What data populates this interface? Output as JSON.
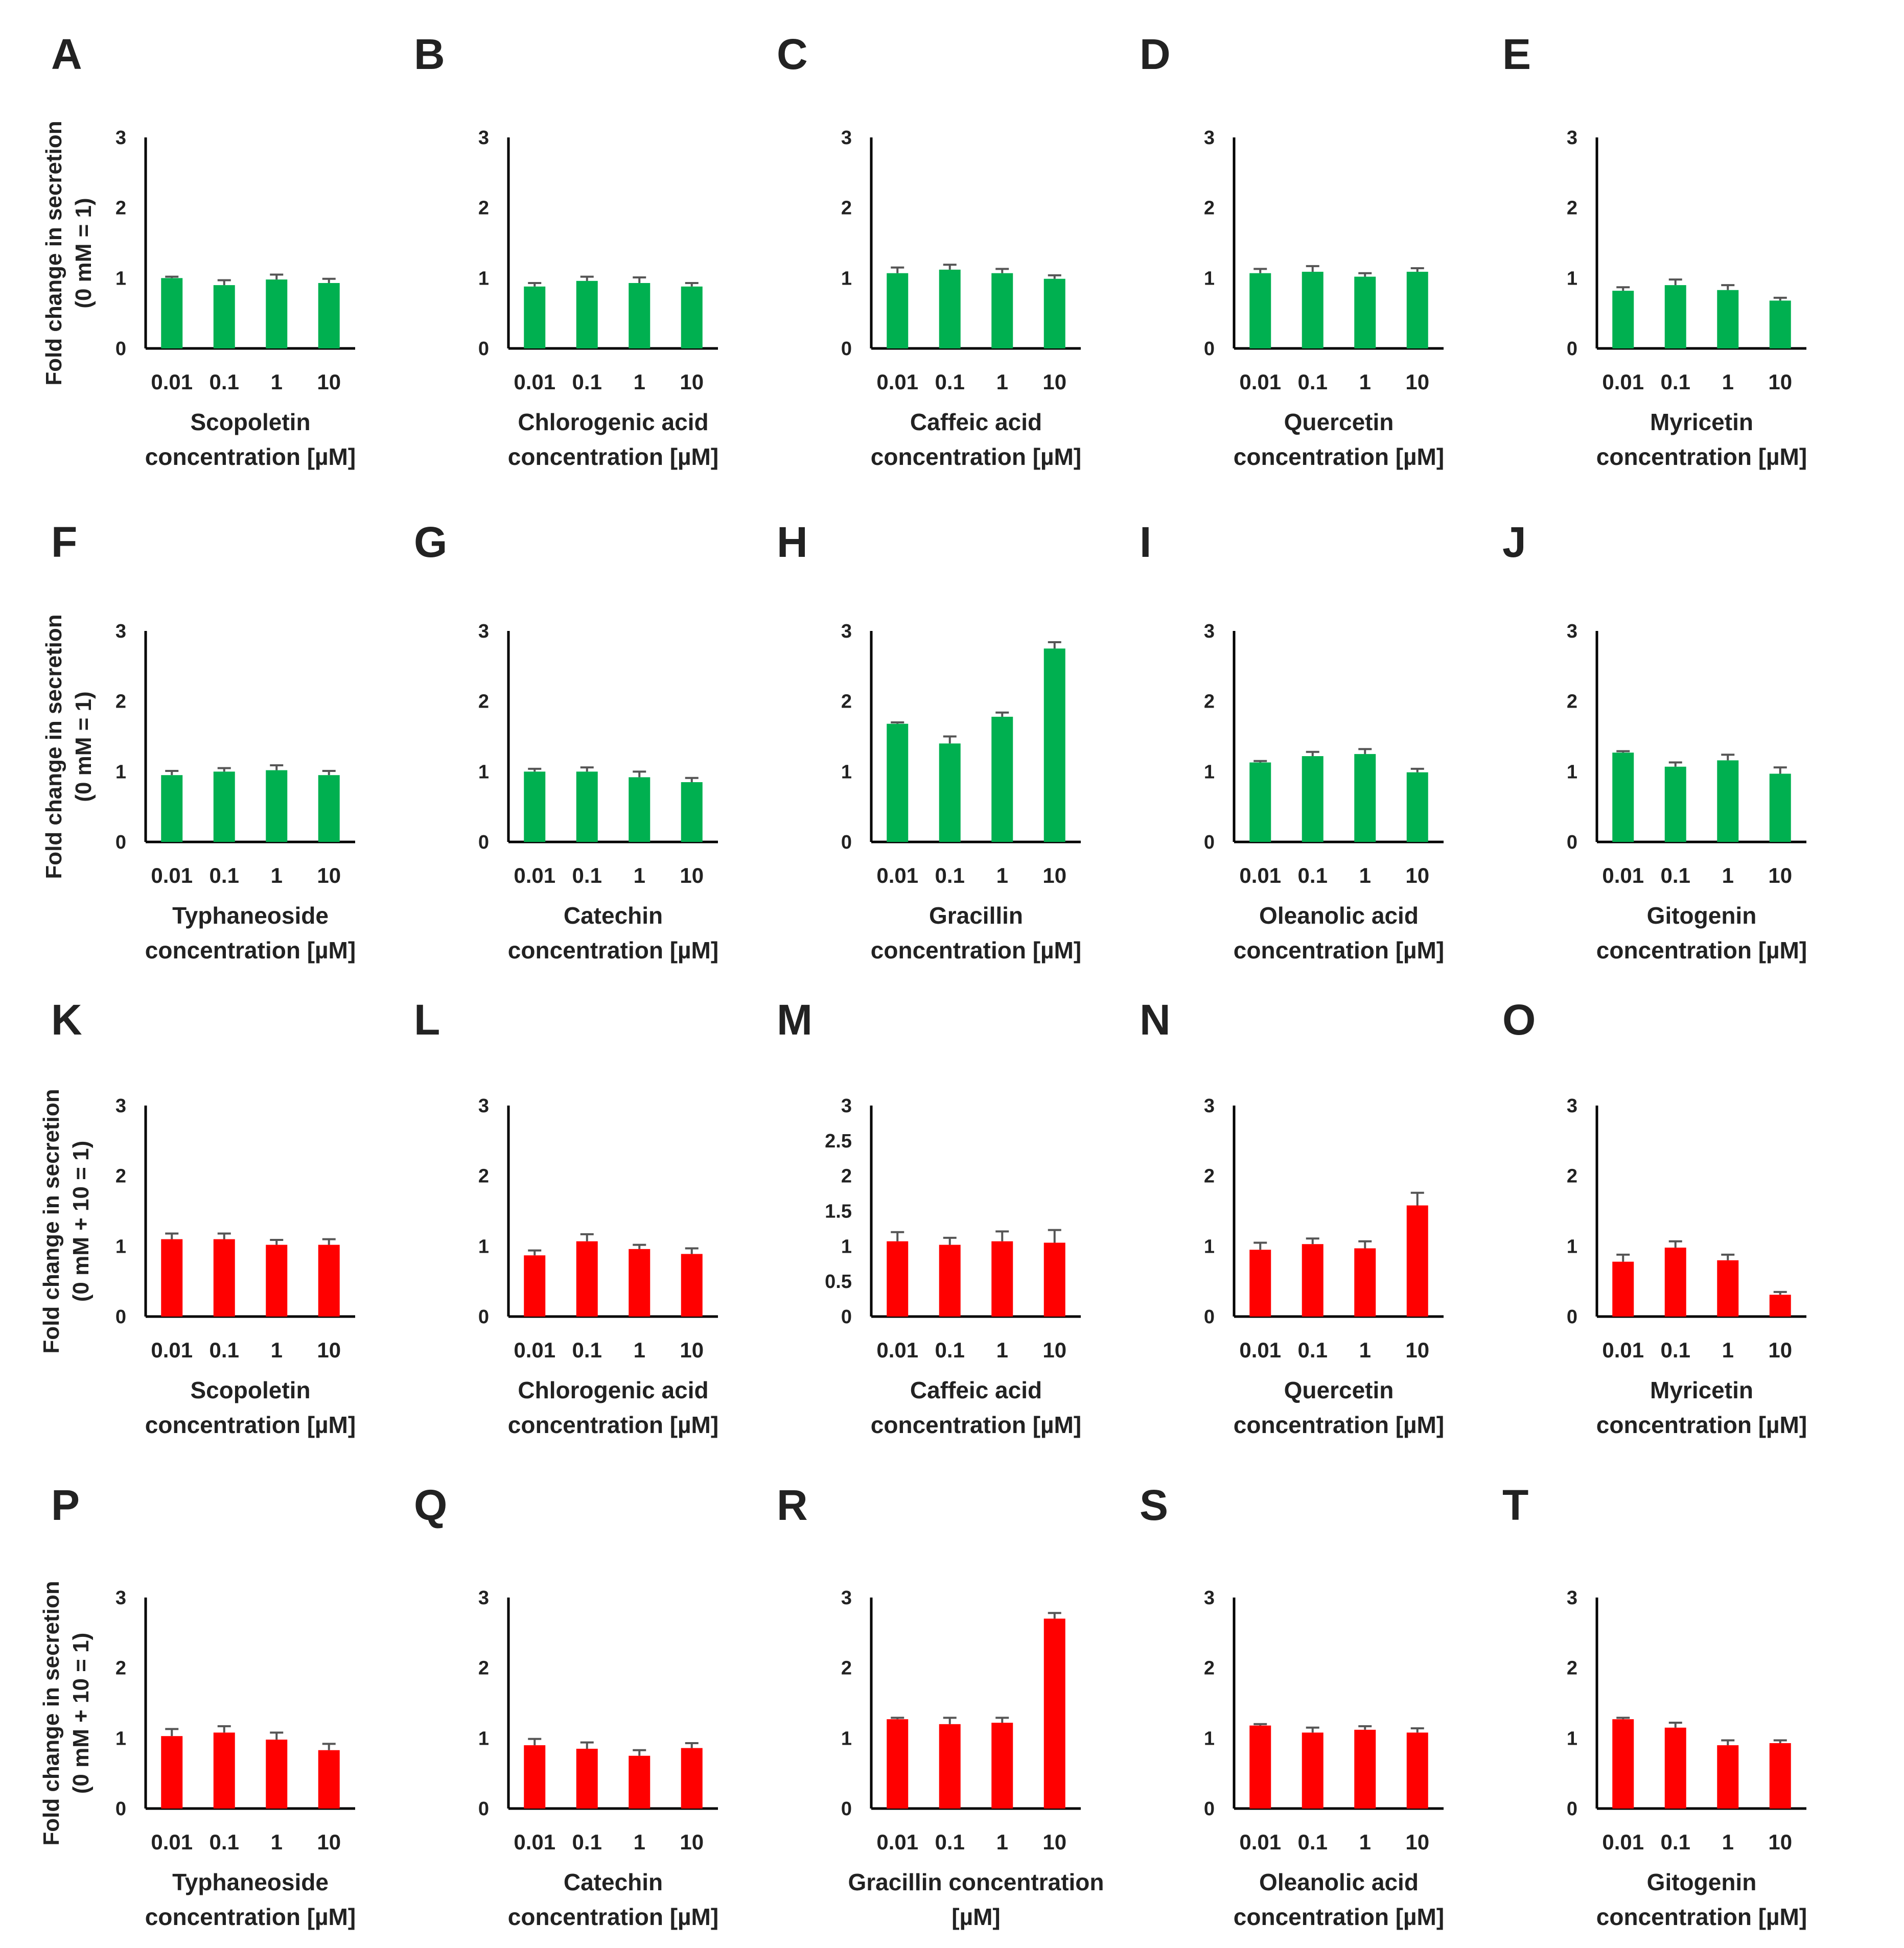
{
  "colors": {
    "control": "#00b050",
    "treated": "#ff0000",
    "axis": "#000000",
    "errorbar": "#555555"
  },
  "y_axis_titles": {
    "rows_1_2": [
      "Fold change in secretion",
      "(0 mM = 1)"
    ],
    "rows_3_4": [
      "Fold change in secretion",
      "(0 mM + 10 = 1)"
    ]
  },
  "chart_data": [
    {
      "panel": "A",
      "type": "bar",
      "color": "control",
      "categories": [
        "0.01",
        "0.1",
        "1",
        "10"
      ],
      "values": [
        1.0,
        0.9,
        0.98,
        0.93
      ],
      "errors": [
        0.02,
        0.07,
        0.07,
        0.06
      ],
      "xlabel": [
        "Scopoletin",
        "concentration [µM]"
      ],
      "ylim": [
        0,
        3
      ],
      "yticks": [
        "0",
        "1",
        "2",
        "3"
      ]
    },
    {
      "panel": "B",
      "type": "bar",
      "color": "control",
      "categories": [
        "0.01",
        "0.1",
        "1",
        "10"
      ],
      "values": [
        0.88,
        0.96,
        0.93,
        0.88
      ],
      "errors": [
        0.05,
        0.06,
        0.08,
        0.05
      ],
      "xlabel": [
        "Chlorogenic acid",
        "concentration [µM]"
      ],
      "ylim": [
        0,
        3
      ],
      "yticks": [
        "0",
        "1",
        "2",
        "3"
      ]
    },
    {
      "panel": "C",
      "type": "bar",
      "color": "control",
      "categories": [
        "0.01",
        "0.1",
        "1",
        "10"
      ],
      "values": [
        1.07,
        1.12,
        1.07,
        0.99
      ],
      "errors": [
        0.08,
        0.07,
        0.06,
        0.05
      ],
      "xlabel": [
        "Caffeic acid",
        "concentration [µM]"
      ],
      "ylim": [
        0,
        3
      ],
      "yticks": [
        "0",
        "1",
        "2",
        "3"
      ]
    },
    {
      "panel": "D",
      "type": "bar",
      "color": "control",
      "categories": [
        "0.01",
        "0.1",
        "1",
        "10"
      ],
      "values": [
        1.07,
        1.09,
        1.02,
        1.09
      ],
      "errors": [
        0.06,
        0.08,
        0.05,
        0.05
      ],
      "xlabel": [
        "Quercetin",
        "concentration [µM]"
      ],
      "ylim": [
        0,
        3
      ],
      "yticks": [
        "0",
        "1",
        "2",
        "3"
      ]
    },
    {
      "panel": "E",
      "type": "bar",
      "color": "control",
      "categories": [
        "0.01",
        "0.1",
        "1",
        "10"
      ],
      "values": [
        0.82,
        0.9,
        0.83,
        0.68
      ],
      "errors": [
        0.05,
        0.08,
        0.07,
        0.04
      ],
      "xlabel": [
        "Myricetin",
        "concentration [µM]"
      ],
      "ylim": [
        0,
        3
      ],
      "yticks": [
        "0",
        "1",
        "2",
        "3"
      ]
    },
    {
      "panel": "F",
      "type": "bar",
      "color": "control",
      "categories": [
        "0.01",
        "0.1",
        "1",
        "10"
      ],
      "values": [
        0.95,
        1.0,
        1.02,
        0.95
      ],
      "errors": [
        0.06,
        0.05,
        0.07,
        0.06
      ],
      "xlabel": [
        "Typhaneoside",
        "concentration [µM]"
      ],
      "ylim": [
        0,
        3
      ],
      "yticks": [
        "0",
        "1",
        "2",
        "3"
      ]
    },
    {
      "panel": "G",
      "type": "bar",
      "color": "control",
      "categories": [
        "0.01",
        "0.1",
        "1",
        "10"
      ],
      "values": [
        1.0,
        1.0,
        0.92,
        0.85
      ],
      "errors": [
        0.04,
        0.06,
        0.08,
        0.06
      ],
      "xlabel": [
        "Catechin",
        "concentration [µM]"
      ],
      "ylim": [
        0,
        3
      ],
      "yticks": [
        "0",
        "1",
        "2",
        "3"
      ]
    },
    {
      "panel": "H",
      "type": "bar",
      "color": "control",
      "categories": [
        "0.01",
        "0.1",
        "1",
        "10"
      ],
      "values": [
        1.68,
        1.4,
        1.78,
        2.75
      ],
      "errors": [
        0.02,
        0.1,
        0.06,
        0.09
      ],
      "xlabel": [
        "Gracillin",
        "concentration [µM]"
      ],
      "ylim": [
        0,
        3
      ],
      "yticks": [
        "0",
        "1",
        "2",
        "3"
      ]
    },
    {
      "panel": "I",
      "type": "bar",
      "color": "control",
      "categories": [
        "0.01",
        "0.1",
        "1",
        "10"
      ],
      "values": [
        1.13,
        1.22,
        1.25,
        0.99
      ],
      "errors": [
        0.02,
        0.06,
        0.07,
        0.05
      ],
      "xlabel": [
        "Oleanolic acid",
        "concentration [µM]"
      ],
      "ylim": [
        0,
        3
      ],
      "yticks": [
        "0",
        "1",
        "2",
        "3"
      ]
    },
    {
      "panel": "J",
      "type": "bar",
      "color": "control",
      "categories": [
        "0.01",
        "0.1",
        "1",
        "10"
      ],
      "values": [
        1.27,
        1.07,
        1.16,
        0.97
      ],
      "errors": [
        0.02,
        0.06,
        0.08,
        0.09
      ],
      "xlabel": [
        "Gitogenin",
        "concentration [µM]"
      ],
      "ylim": [
        0,
        3
      ],
      "yticks": [
        "0",
        "1",
        "2",
        "3"
      ]
    },
    {
      "panel": "K",
      "type": "bar",
      "color": "treated",
      "categories": [
        "0.01",
        "0.1",
        "1",
        "10"
      ],
      "values": [
        1.1,
        1.1,
        1.02,
        1.02
      ],
      "errors": [
        0.08,
        0.08,
        0.07,
        0.08
      ],
      "xlabel": [
        "Scopoletin",
        "concentration [µM]"
      ],
      "ylim": [
        0,
        3
      ],
      "yticks": [
        "0",
        "1",
        "2",
        "3"
      ]
    },
    {
      "panel": "L",
      "type": "bar",
      "color": "treated",
      "categories": [
        "0.01",
        "0.1",
        "1",
        "10"
      ],
      "values": [
        0.87,
        1.07,
        0.96,
        0.89
      ],
      "errors": [
        0.07,
        0.1,
        0.06,
        0.08
      ],
      "xlabel": [
        "Chlorogenic acid",
        "concentration [µM]"
      ],
      "ylim": [
        0,
        3
      ],
      "yticks": [
        "0",
        "1",
        "2",
        "3"
      ]
    },
    {
      "panel": "M",
      "type": "bar",
      "color": "treated",
      "categories": [
        "0.01",
        "0.1",
        "1",
        "10"
      ],
      "values": [
        1.07,
        1.02,
        1.07,
        1.05
      ],
      "errors": [
        0.13,
        0.1,
        0.14,
        0.18
      ],
      "xlabel": [
        "Caffeic acid",
        "concentration [µM]"
      ],
      "ylim": [
        0,
        3
      ],
      "yticks": [
        "0",
        "0.5",
        "1",
        "1.5",
        "2",
        "2.5",
        "3"
      ]
    },
    {
      "panel": "N",
      "type": "bar",
      "color": "treated",
      "categories": [
        "0.01",
        "0.1",
        "1",
        "10"
      ],
      "values": [
        0.95,
        1.03,
        0.97,
        1.58
      ],
      "errors": [
        0.1,
        0.08,
        0.1,
        0.18
      ],
      "xlabel": [
        "Quercetin",
        "concentration [µM]"
      ],
      "ylim": [
        0,
        3
      ],
      "yticks": [
        "0",
        "1",
        "2",
        "3"
      ]
    },
    {
      "panel": "O",
      "type": "bar",
      "color": "treated",
      "categories": [
        "0.01",
        "0.1",
        "1",
        "10"
      ],
      "values": [
        0.78,
        0.98,
        0.8,
        0.31
      ],
      "errors": [
        0.1,
        0.09,
        0.08,
        0.04
      ],
      "xlabel": [
        "Myricetin",
        "concentration [µM]"
      ],
      "ylim": [
        0,
        3
      ],
      "yticks": [
        "0",
        "1",
        "2",
        "3"
      ]
    },
    {
      "panel": "P",
      "type": "bar",
      "color": "treated",
      "categories": [
        "0.01",
        "0.1",
        "1",
        "10"
      ],
      "values": [
        1.03,
        1.08,
        0.98,
        0.83
      ],
      "errors": [
        0.1,
        0.09,
        0.1,
        0.09
      ],
      "xlabel": [
        "Typhaneoside",
        "concentration [µM]"
      ],
      "ylim": [
        0,
        3
      ],
      "yticks": [
        "0",
        "1",
        "2",
        "3"
      ]
    },
    {
      "panel": "Q",
      "type": "bar",
      "color": "treated",
      "categories": [
        "0.01",
        "0.1",
        "1",
        "10"
      ],
      "values": [
        0.9,
        0.85,
        0.75,
        0.86
      ],
      "errors": [
        0.09,
        0.09,
        0.08,
        0.07
      ],
      "xlabel": [
        "Catechin",
        "concentration [µM]"
      ],
      "ylim": [
        0,
        3
      ],
      "yticks": [
        "0",
        "1",
        "2",
        "3"
      ]
    },
    {
      "panel": "R",
      "type": "bar",
      "color": "treated",
      "categories": [
        "0.01",
        "0.1",
        "1",
        "10"
      ],
      "values": [
        1.27,
        1.2,
        1.22,
        2.7
      ],
      "errors": [
        0.02,
        0.09,
        0.07,
        0.08
      ],
      "xlabel": [
        "Gracillin concentration",
        "[µM]"
      ],
      "ylim": [
        0,
        3
      ],
      "yticks": [
        "0",
        "1",
        "2",
        "3"
      ]
    },
    {
      "panel": "S",
      "type": "bar",
      "color": "treated",
      "categories": [
        "0.01",
        "0.1",
        "1",
        "10"
      ],
      "values": [
        1.18,
        1.08,
        1.12,
        1.08
      ],
      "errors": [
        0.02,
        0.07,
        0.05,
        0.06
      ],
      "xlabel": [
        "Oleanolic acid",
        "concentration [µM]"
      ],
      "ylim": [
        0,
        3
      ],
      "yticks": [
        "0",
        "1",
        "2",
        "3"
      ]
    },
    {
      "panel": "T",
      "type": "bar",
      "color": "treated",
      "categories": [
        "0.01",
        "0.1",
        "1",
        "10"
      ],
      "values": [
        1.27,
        1.15,
        0.9,
        0.93
      ],
      "errors": [
        0.02,
        0.07,
        0.07,
        0.04
      ],
      "xlabel": [
        "Gitogenin",
        "concentration [µM]"
      ],
      "ylim": [
        0,
        3
      ],
      "yticks": [
        "0",
        "1",
        "2",
        "3"
      ]
    }
  ]
}
